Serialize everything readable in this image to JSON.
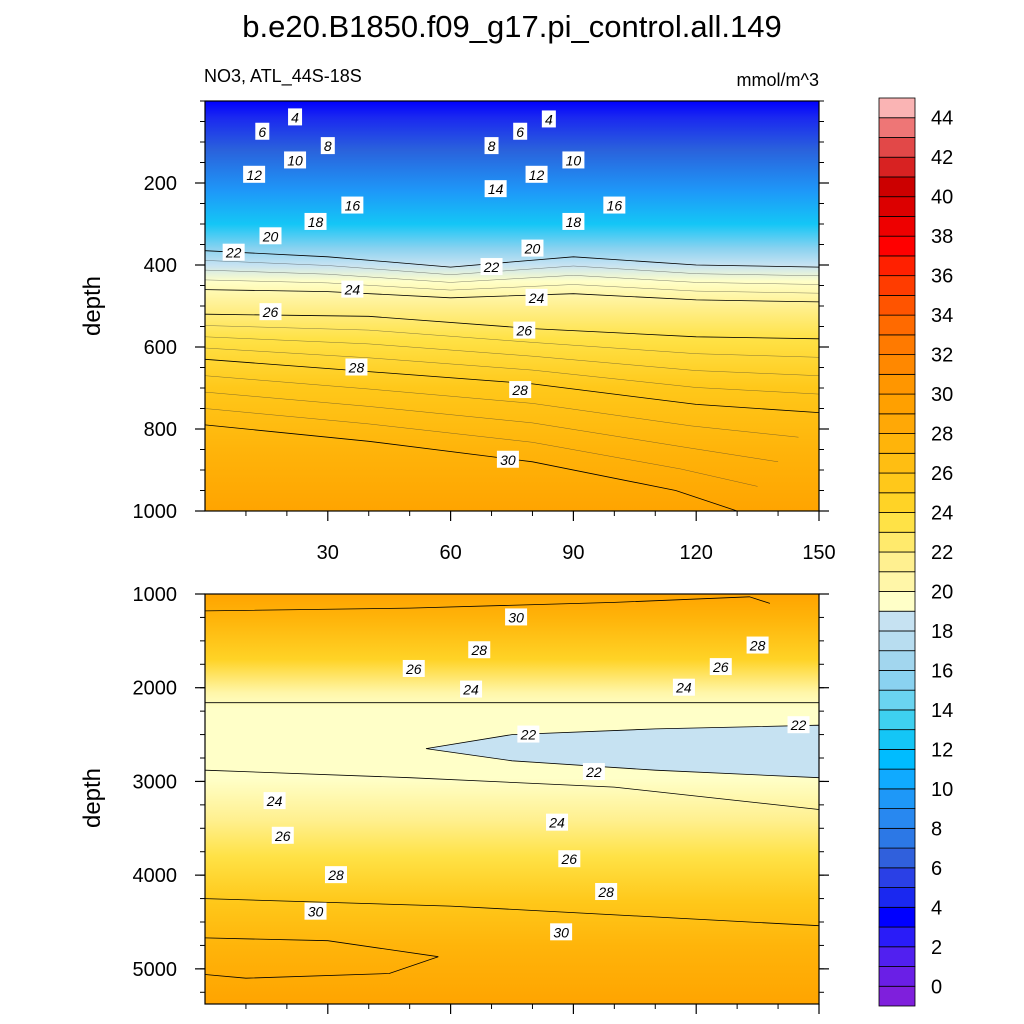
{
  "figure": {
    "title": "b.e20.B1850.f09_g17.pi_control.all.149",
    "variable_label": "NO3, ATL_44S-18S",
    "units_label": "mmol/m^3"
  },
  "chart_data": [
    {
      "type": "heatmap",
      "panel": "upper",
      "title": "",
      "xlabel": "",
      "ylabel": "depth",
      "x_ticks": [
        30,
        60,
        90,
        120,
        150
      ],
      "x_ticks_labeled": true,
      "y_ticks": [
        200,
        400,
        600,
        800,
        1000
      ],
      "xlim": [
        0,
        150
      ],
      "ylim": [
        1000,
        0
      ],
      "y_inverted": true,
      "contour_interval": 1,
      "contour_lines": [
        {
          "level": 22,
          "points": [
            [
              0,
              365
            ],
            [
              30,
              380
            ],
            [
              60,
              405
            ],
            [
              90,
              380
            ],
            [
              120,
              400
            ],
            [
              150,
              405
            ]
          ]
        },
        {
          "level": 24,
          "points": [
            [
              0,
              460
            ],
            [
              30,
              465
            ],
            [
              60,
              480
            ],
            [
              90,
              470
            ],
            [
              120,
              485
            ],
            [
              150,
              490
            ]
          ]
        },
        {
          "level": 26,
          "points": [
            [
              0,
              520
            ],
            [
              40,
              525
            ],
            [
              80,
              555
            ],
            [
              120,
              575
            ],
            [
              150,
              580
            ]
          ]
        },
        {
          "level": 28,
          "points": [
            [
              0,
              630
            ],
            [
              40,
              660
            ],
            [
              80,
              690
            ],
            [
              120,
              740
            ],
            [
              150,
              760
            ]
          ]
        },
        {
          "level": 30,
          "points": [
            [
              0,
              790
            ],
            [
              40,
              830
            ],
            [
              80,
              880
            ],
            [
              115,
              950
            ],
            [
              130,
              1000
            ]
          ]
        }
      ],
      "contour_labels": [
        {
          "text": "4",
          "x": 22,
          "y": 40
        },
        {
          "text": "4",
          "x": 84,
          "y": 45
        },
        {
          "text": "6",
          "x": 14,
          "y": 75
        },
        {
          "text": "6",
          "x": 77,
          "y": 75
        },
        {
          "text": "8",
          "x": 30,
          "y": 110
        },
        {
          "text": "8",
          "x": 70,
          "y": 110
        },
        {
          "text": "10",
          "x": 22,
          "y": 145
        },
        {
          "text": "10",
          "x": 90,
          "y": 145
        },
        {
          "text": "12",
          "x": 12,
          "y": 180
        },
        {
          "text": "12",
          "x": 81,
          "y": 180
        },
        {
          "text": "14",
          "x": 71,
          "y": 215
        },
        {
          "text": "16",
          "x": 36,
          "y": 255
        },
        {
          "text": "16",
          "x": 100,
          "y": 255
        },
        {
          "text": "18",
          "x": 27,
          "y": 295
        },
        {
          "text": "18",
          "x": 90,
          "y": 295
        },
        {
          "text": "20",
          "x": 16,
          "y": 330
        },
        {
          "text": "20",
          "x": 80,
          "y": 360
        },
        {
          "text": "22",
          "x": 7,
          "y": 370
        },
        {
          "text": "22",
          "x": 70,
          "y": 405
        },
        {
          "text": "24",
          "x": 36,
          "y": 460
        },
        {
          "text": "24",
          "x": 81,
          "y": 480
        },
        {
          "text": "26",
          "x": 16,
          "y": 515
        },
        {
          "text": "26",
          "x": 78,
          "y": 560
        },
        {
          "text": "28",
          "x": 37,
          "y": 650
        },
        {
          "text": "28",
          "x": 77,
          "y": 705
        },
        {
          "text": "30",
          "x": 74,
          "y": 875
        }
      ]
    },
    {
      "type": "heatmap",
      "panel": "lower",
      "title": "",
      "xlabel": "",
      "ylabel": "depth",
      "x_ticks": [
        30,
        60,
        90,
        120,
        150
      ],
      "x_ticks_labeled": false,
      "y_ticks": [
        1000,
        2000,
        3000,
        4000,
        5000
      ],
      "xlim": [
        0,
        150
      ],
      "ylim": [
        5375,
        1000
      ],
      "y_inverted": true,
      "contour_interval": 1,
      "contour_lines": [
        {
          "level": 30,
          "points": [
            [
              0,
              1180
            ],
            [
              50,
              1150
            ],
            [
              100,
              1090
            ],
            [
              133,
              1030
            ],
            [
              138,
              1100
            ]
          ]
        },
        {
          "level": 22,
          "points": [
            [
              0,
              2160
            ],
            [
              150,
              2160
            ]
          ]
        },
        {
          "level": 22,
          "points": [
            [
              54,
              2650
            ],
            [
              75,
              2500
            ],
            [
              110,
              2440
            ],
            [
              150,
              2400
            ],
            [
              150,
              2960
            ],
            [
              110,
              2880
            ],
            [
              75,
              2780
            ],
            [
              54,
              2650
            ]
          ]
        },
        {
          "level": 22,
          "points": [
            [
              0,
              2880
            ],
            [
              50,
              2960
            ],
            [
              100,
              3060
            ],
            [
              150,
              3300
            ]
          ]
        },
        {
          "level": 30,
          "points": [
            [
              0,
              4250
            ],
            [
              60,
              4330
            ],
            [
              150,
              4540
            ]
          ]
        },
        {
          "level": 31,
          "points": [
            [
              0,
              4670
            ],
            [
              30,
              4700
            ],
            [
              57,
              4870
            ],
            [
              45,
              5050
            ],
            [
              10,
              5100
            ],
            [
              0,
              5060
            ]
          ]
        }
      ],
      "contour_labels": [
        {
          "text": "30",
          "x": 76,
          "y": 1250
        },
        {
          "text": "28",
          "x": 67,
          "y": 1600
        },
        {
          "text": "28",
          "x": 135,
          "y": 1550
        },
        {
          "text": "26",
          "x": 51,
          "y": 1800
        },
        {
          "text": "26",
          "x": 126,
          "y": 1780
        },
        {
          "text": "24",
          "x": 65,
          "y": 2020
        },
        {
          "text": "24",
          "x": 117,
          "y": 2000
        },
        {
          "text": "22",
          "x": 79,
          "y": 2500
        },
        {
          "text": "22",
          "x": 145,
          "y": 2400
        },
        {
          "text": "22",
          "x": 95,
          "y": 2900
        },
        {
          "text": "24",
          "x": 17,
          "y": 3210
        },
        {
          "text": "24",
          "x": 86,
          "y": 3440
        },
        {
          "text": "26",
          "x": 19,
          "y": 3580
        },
        {
          "text": "26",
          "x": 89,
          "y": 3830
        },
        {
          "text": "28",
          "x": 32,
          "y": 4000
        },
        {
          "text": "28",
          "x": 98,
          "y": 4180
        },
        {
          "text": "30",
          "x": 27,
          "y": 4390
        },
        {
          "text": "30",
          "x": 87,
          "y": 4610
        }
      ]
    }
  ],
  "colorbar": {
    "labels": [
      "0",
      "2",
      "4",
      "6",
      "8",
      "10",
      "12",
      "14",
      "16",
      "18",
      "20",
      "22",
      "24",
      "26",
      "28",
      "30",
      "32",
      "34",
      "36",
      "38",
      "40",
      "42",
      "44"
    ],
    "colors": [
      "#7f1fdc",
      "#6a1fe6",
      "#5120f0",
      "#2a1cf8",
      "#0000ff",
      "#1a28f0",
      "#2a40e6",
      "#3060dc",
      "#2c78e6",
      "#2888f0",
      "#1e98f8",
      "#10aaff",
      "#00bcff",
      "#14c6f6",
      "#3ed0f0",
      "#6ad4f0",
      "#8ad2f0",
      "#a2d6ee",
      "#b8ddf0",
      "#c6e2f2",
      "#ffffc8",
      "#fff6a8",
      "#fff090",
      "#ffea6c",
      "#ffe246",
      "#ffd326",
      "#ffc81a",
      "#ffbe12",
      "#ffb40a",
      "#ffa806",
      "#ffa000",
      "#ff9600",
      "#ff8800",
      "#ff7a00",
      "#ff6a00",
      "#ff5400",
      "#ff3c00",
      "#ff2000",
      "#ff0000",
      "#ee0000",
      "#dc0000",
      "#cc0000",
      "#d82222",
      "#e24848",
      "#ee7676",
      "#fab4b4"
    ]
  }
}
